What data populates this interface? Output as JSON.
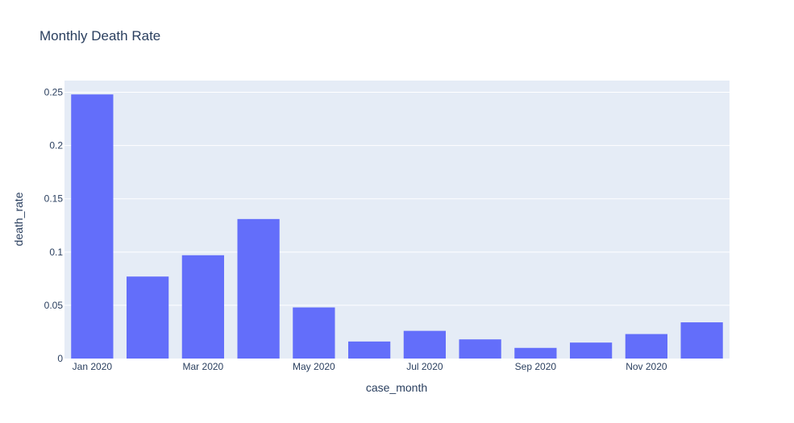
{
  "chart_data": {
    "type": "bar",
    "title": "Monthly Death Rate",
    "xlabel": "case_month",
    "ylabel": "death_rate",
    "categories": [
      "2020-01",
      "2020-02",
      "2020-03",
      "2020-04",
      "2020-05",
      "2020-06",
      "2020-07",
      "2020-08",
      "2020-09",
      "2020-10",
      "2020-11",
      "2020-12"
    ],
    "values": [
      0.248,
      0.077,
      0.097,
      0.131,
      0.048,
      0.016,
      0.026,
      0.018,
      0.01,
      0.015,
      0.023,
      0.034
    ],
    "x_tick_labels": [
      "Jan 2020",
      "Mar 2020",
      "May 2020",
      "Jul 2020",
      "Sep 2020",
      "Nov 2020"
    ],
    "x_tick_categories": [
      "2020-01",
      "2020-03",
      "2020-05",
      "2020-07",
      "2020-09",
      "2020-11"
    ],
    "y_ticks": [
      0,
      0.05,
      0.1,
      0.15,
      0.2,
      0.25
    ],
    "y_tick_labels": [
      "0",
      "0.05",
      "0.1",
      "0.15",
      "0.2",
      "0.25"
    ],
    "ylim": [
      0,
      0.261
    ],
    "grid": true,
    "legend": "none",
    "colors": {
      "bar": "#636efa",
      "plot_bg": "#e5ecf6",
      "grid": "#ffffff",
      "text": "#2a3f5f"
    }
  }
}
